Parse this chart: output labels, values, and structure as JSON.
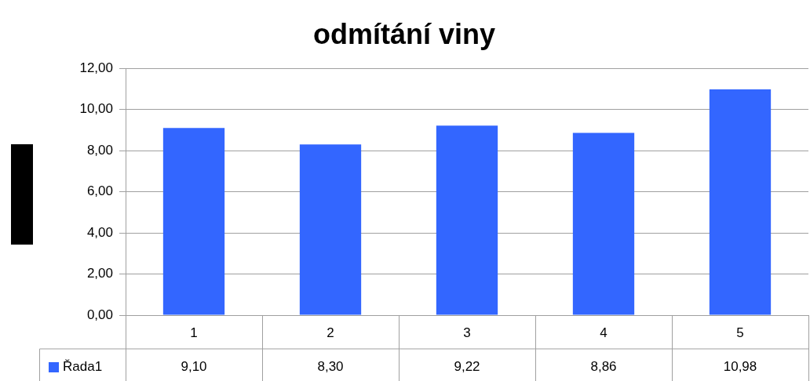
{
  "chart_data": {
    "type": "bar",
    "title": "odmítání viny",
    "categories": [
      "1",
      "2",
      "3",
      "4",
      "5"
    ],
    "series": [
      {
        "name": "Řada1",
        "color": "#3366ff",
        "values": [
          9.1,
          8.3,
          9.22,
          8.86,
          10.98
        ],
        "value_labels": [
          "9,10",
          "8,30",
          "9,22",
          "8,86",
          "10,98"
        ]
      }
    ],
    "ylim": [
      0,
      12
    ],
    "yticks": [
      {
        "value": 0,
        "label": "0,00"
      },
      {
        "value": 2,
        "label": "2,00"
      },
      {
        "value": 4,
        "label": "4,00"
      },
      {
        "value": 6,
        "label": "6,00"
      },
      {
        "value": 8,
        "label": "8,00"
      },
      {
        "value": 10,
        "label": "10,00"
      },
      {
        "value": 12,
        "label": "12,00"
      }
    ],
    "grid": "y",
    "legend": "bottom"
  }
}
